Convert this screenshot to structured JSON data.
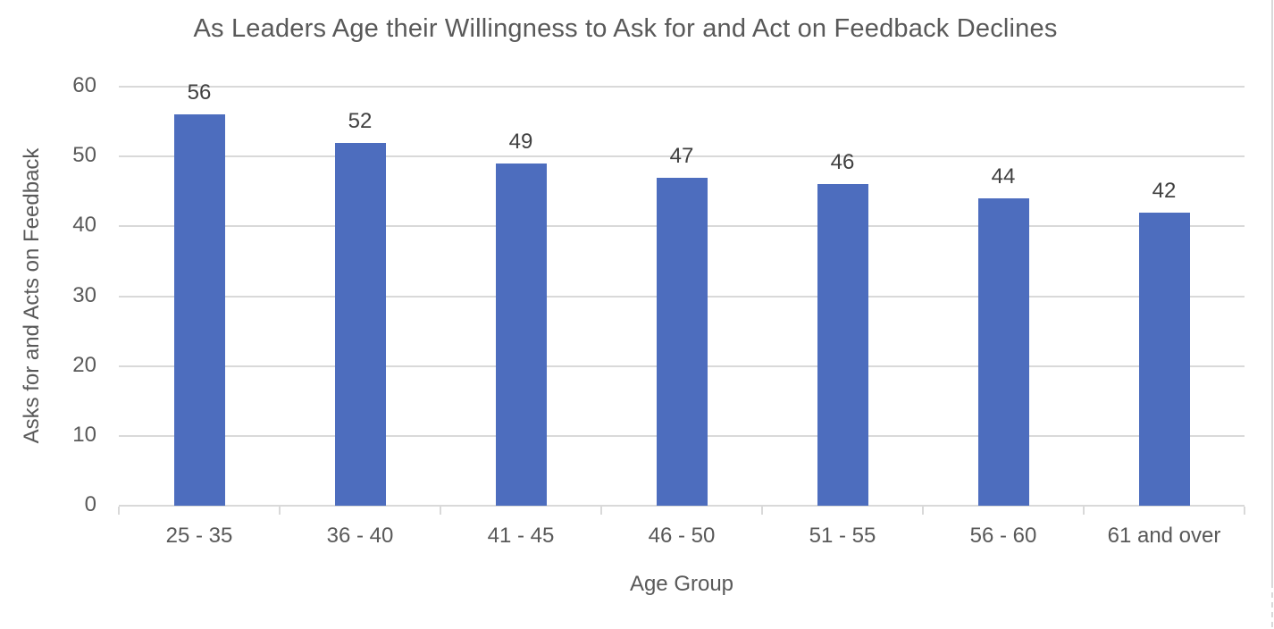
{
  "chart_data": {
    "type": "bar",
    "title": "As Leaders Age their Willingness to Ask for and Act on Feedback Declines",
    "xlabel": "Age Group",
    "ylabel": "Asks for and Acts on Feedback",
    "categories": [
      "25 - 35",
      "36 - 40",
      "41 - 45",
      "46 - 50",
      "51 - 55",
      "56 - 60",
      "61 and over"
    ],
    "values": [
      56,
      52,
      49,
      47,
      46,
      44,
      42
    ],
    "data_labels": [
      "56",
      "52",
      "49",
      "47",
      "46",
      "44",
      "42"
    ],
    "ylim": [
      0,
      60
    ],
    "yticks": [
      0,
      10,
      20,
      30,
      40,
      50,
      60
    ],
    "grid": true,
    "legend": "none",
    "bar_color": "#4d6dbe",
    "gridline_color": "#d9d9d9",
    "title_color": "#595959",
    "tick_label_color": "#595959",
    "data_label_color": "#404040"
  },
  "page": {
    "edge_line_color": "#d9d9d9"
  }
}
